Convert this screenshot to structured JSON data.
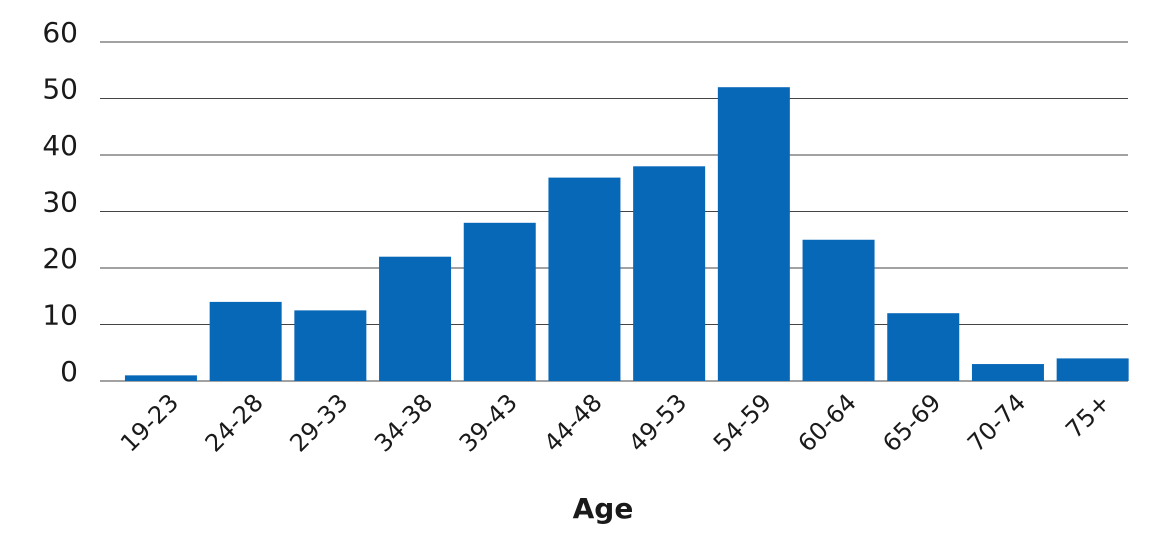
{
  "chart_data": {
    "type": "bar",
    "x_label": "Age",
    "categories": [
      "19-23",
      "24-28",
      "29-33",
      "34-38",
      "39-43",
      "44-48",
      "49-53",
      "54-59",
      "60-64",
      "65-69",
      "70-74",
      "75+"
    ],
    "values": [
      1,
      14,
      12.5,
      22,
      28,
      36,
      38,
      52,
      25,
      12,
      3,
      4
    ],
    "color": "#0868b8",
    "ylim": [
      0,
      60
    ],
    "yticks": [
      0,
      10,
      20,
      30,
      40,
      50,
      60
    ],
    "grid": true
  }
}
